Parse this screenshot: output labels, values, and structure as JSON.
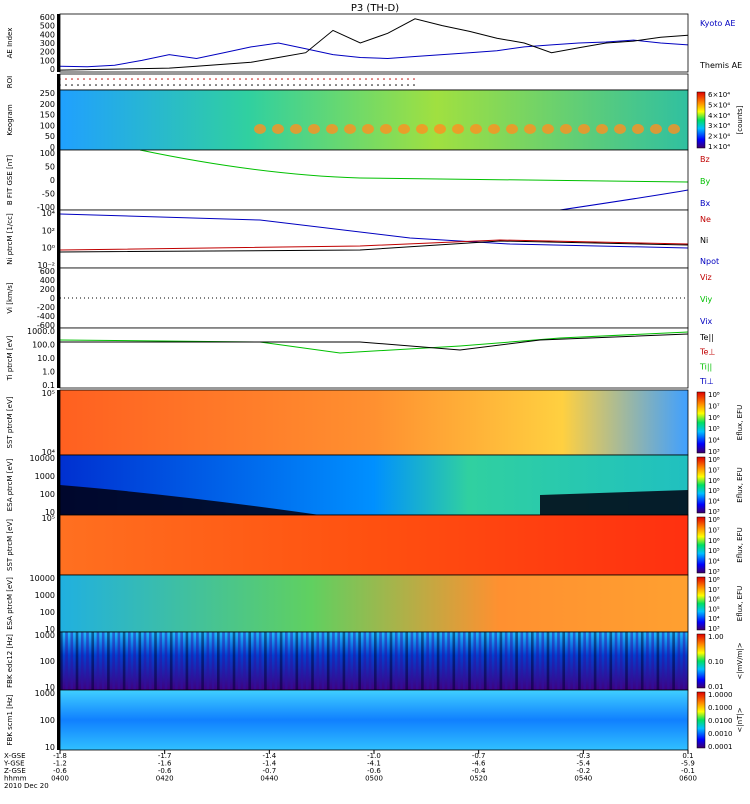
{
  "title": "P3 (TH-D)",
  "chart_data": [
    {
      "type": "line",
      "name": "ae",
      "ylabel": "AE Index",
      "yticks": [
        "600",
        "500",
        "400",
        "300",
        "200",
        "100",
        "0"
      ],
      "ylim": [
        0,
        600
      ],
      "series": [
        {
          "name": "Kyoto AE",
          "color": "#0000c0",
          "values": [
            60,
            55,
            70,
            120,
            180,
            140,
            200,
            260,
            300,
            240,
            180,
            150,
            140,
            160,
            180,
            200,
            220,
            260,
            280,
            300,
            310,
            330,
            300,
            280
          ]
        },
        {
          "name": "Themis AE",
          "color": "#000000",
          "values": [
            20,
            25,
            30,
            35,
            40,
            60,
            80,
            100,
            150,
            200,
            430,
            300,
            400,
            550,
            480,
            420,
            350,
            300,
            200,
            250,
            300,
            320,
            360,
            380
          ]
        }
      ],
      "legend": [
        "Kyoto AE",
        "Themis AE"
      ]
    },
    {
      "type": "scatter",
      "name": "roi",
      "ylabel": "ROI"
    },
    {
      "type": "heatmap",
      "name": "keogram",
      "ylabel": "Keogram",
      "yticks": [
        "250",
        "200",
        "150",
        "100",
        "50",
        "0"
      ],
      "colorbar_ticks": [
        "6×10⁴",
        "5×10⁴",
        "4×10⁴",
        "3×10⁴",
        "2×10⁴",
        "1×10⁴"
      ],
      "colorbar_label": "[counts]"
    },
    {
      "type": "line",
      "name": "bfield",
      "ylabel": "B FIT GSE [nT]",
      "yticks": [
        "100",
        "50",
        "0",
        "-50",
        "-100"
      ],
      "ylim": [
        -100,
        100
      ],
      "series": [
        {
          "name": "Bz",
          "color": "#c00000"
        },
        {
          "name": "By",
          "color": "#00c000"
        },
        {
          "name": "Bx",
          "color": "#0000c0"
        }
      ]
    },
    {
      "type": "line",
      "name": "density",
      "ylabel": "Ni ptrcM [1/cc]",
      "yticks": [
        "10⁴",
        "10²",
        "10⁰",
        "10⁻²"
      ],
      "series": [
        {
          "name": "Ne",
          "color": "#c00000"
        },
        {
          "name": "Ni",
          "color": "#000000"
        },
        {
          "name": "Npot",
          "color": "#0000c0"
        }
      ]
    },
    {
      "type": "line",
      "name": "velocity",
      "ylabel": "Vi [km/s]",
      "yticks": [
        "600",
        "400",
        "200",
        "0",
        "-200",
        "-400",
        "-600"
      ],
      "series": [
        {
          "name": "Viz",
          "color": "#c00000"
        },
        {
          "name": "Viy",
          "color": "#00c000"
        },
        {
          "name": "Vix",
          "color": "#0000c0"
        }
      ]
    },
    {
      "type": "line",
      "name": "temp",
      "ylabel": "Ti ptrcM [eV]",
      "yticks": [
        "1000.0",
        "100.0",
        "10.0",
        "1.0",
        "0.1"
      ],
      "series": [
        {
          "name": "Te||",
          "color": "#000000"
        },
        {
          "name": "Te⊥",
          "color": "#c00000"
        },
        {
          "name": "Ti||",
          "color": "#00c000"
        },
        {
          "name": "Ti⊥",
          "color": "#0000c0"
        }
      ]
    },
    {
      "type": "heatmap",
      "name": "sst_i",
      "ylabel": "SST ptrcM [eV]",
      "yticks": [
        "10⁵",
        "10⁴"
      ],
      "colorbar_ticks": [
        "10⁸",
        "10⁷",
        "10⁶",
        "10⁵",
        "10⁴",
        "10³"
      ],
      "colorbar_label": "Eflux, EFU"
    },
    {
      "type": "heatmap",
      "name": "esa_i",
      "ylabel": "ESA ptrcM [eV]",
      "yticks": [
        "10000",
        "1000",
        "100",
        "10"
      ],
      "colorbar_ticks": [
        "10⁸",
        "10⁷",
        "10⁶",
        "10⁵",
        "10⁴",
        "10³"
      ],
      "colorbar_label": "Eflux, EFU"
    },
    {
      "type": "heatmap",
      "name": "sst_e",
      "ylabel": "SST ptrcM [eV]",
      "yticks": [
        "10⁵"
      ],
      "colorbar_ticks": [
        "10⁸",
        "10⁷",
        "10⁶",
        "10⁵",
        "10⁴",
        "10³"
      ],
      "colorbar_label": "Eflux, EFU"
    },
    {
      "type": "heatmap",
      "name": "esa_e",
      "ylabel": "ESA ptrcM [eV]",
      "yticks": [
        "10000",
        "1000",
        "100",
        "10"
      ],
      "colorbar_ticks": [
        "10⁸",
        "10⁷",
        "10⁶",
        "10⁵",
        "10⁴",
        "10³"
      ],
      "colorbar_label": "Eflux, EFU"
    },
    {
      "type": "heatmap",
      "name": "fbk_e",
      "ylabel": "FBK edc12 [Hz]",
      "yticks": [
        "1000",
        "100",
        "10"
      ],
      "colorbar_ticks": [
        "1.00",
        "0.10",
        "0.01"
      ],
      "colorbar_label": "<|mV/m|>"
    },
    {
      "type": "heatmap",
      "name": "fbk_b",
      "ylabel": "FBK scm1 [Hz]",
      "yticks": [
        "1000",
        "100",
        "10"
      ],
      "colorbar_ticks": [
        "1.0000",
        "0.1000",
        "0.0100",
        "0.0010",
        "0.0001"
      ],
      "colorbar_label": "<|nT|>"
    }
  ],
  "xaxis": {
    "row_labels": [
      "X-GSE",
      "Y-GSE",
      "Z-GSE",
      "hhmm",
      "2010 Dec 20"
    ],
    "ticks": [
      {
        "x": "-1.8",
        "y": "-1.2",
        "z": "-0.6",
        "t": "0400"
      },
      {
        "x": "-1.7",
        "y": "-1.6",
        "z": "-0.6",
        "t": "0420"
      },
      {
        "x": "-1.4",
        "y": "-1.4",
        "z": "-0.7",
        "t": "0440"
      },
      {
        "x": "-1.0",
        "y": "-4.1",
        "z": "-0.6",
        "t": "0500"
      },
      {
        "x": "-0.7",
        "y": "-4.6",
        "z": "-0.4",
        "t": "0520"
      },
      {
        "x": "-0.3",
        "y": "-5.4",
        "z": "-0.2",
        "t": "0540"
      },
      {
        "x": "0.1",
        "y": "-5.9",
        "z": "-0.1",
        "t": "0600"
      }
    ]
  }
}
